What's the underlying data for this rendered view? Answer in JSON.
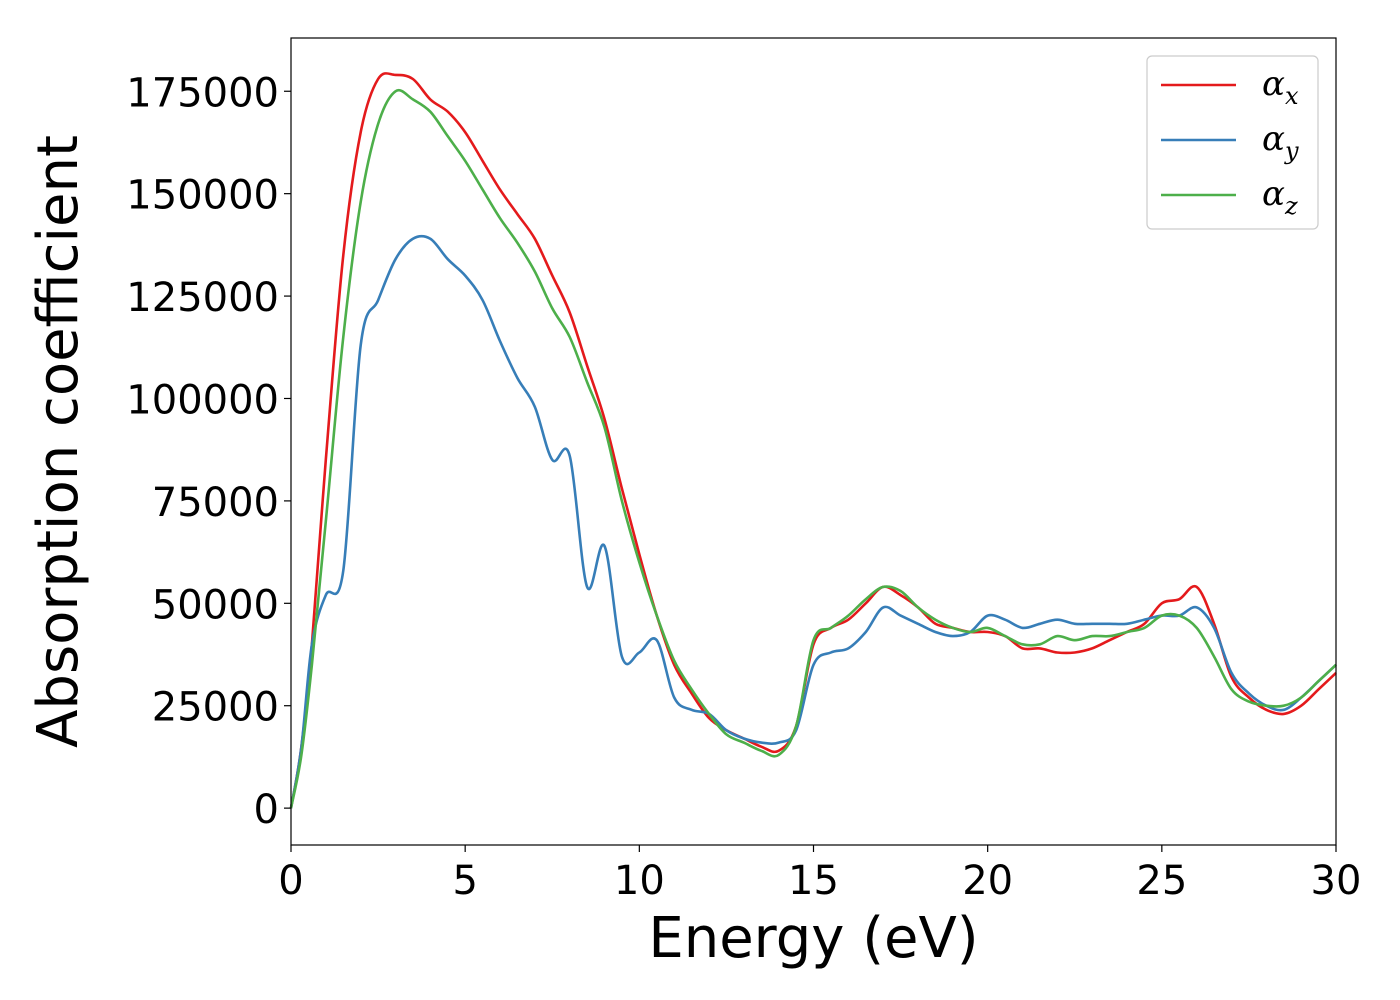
{
  "chart_data": {
    "type": "line",
    "xlabel": "Energy (eV)",
    "ylabel": "Absorption coefficient",
    "xlim": [
      0,
      30
    ],
    "ylim": [
      -9000,
      188000
    ],
    "xticks": [
      0,
      5,
      10,
      15,
      20,
      25,
      30
    ],
    "xtick_labels": [
      "0",
      "5",
      "10",
      "15",
      "20",
      "25",
      "30"
    ],
    "yticks": [
      0,
      25000,
      50000,
      75000,
      100000,
      125000,
      150000,
      175000
    ],
    "ytick_labels": [
      "0",
      "25000",
      "50000",
      "75000",
      "100000",
      "125000",
      "150000",
      "175000"
    ],
    "grid": false,
    "legend_position": "top-right",
    "series": [
      {
        "name": "α_x",
        "legend_symbol": "α",
        "legend_sub": "x",
        "color": "#e41a1c",
        "x": [
          0,
          0.3,
          0.6,
          1.0,
          1.5,
          2.0,
          2.5,
          3.0,
          3.5,
          4.0,
          4.5,
          5.0,
          5.5,
          6.0,
          6.5,
          7.0,
          7.5,
          8.0,
          8.5,
          9.0,
          9.5,
          10.0,
          10.5,
          11.0,
          11.5,
          12.0,
          12.5,
          13.0,
          13.5,
          14.0,
          14.5,
          15.0,
          15.5,
          16.0,
          16.5,
          17.0,
          17.5,
          18.0,
          18.5,
          19.0,
          19.5,
          20.0,
          20.5,
          21.0,
          21.5,
          22.0,
          22.5,
          23.0,
          23.5,
          24.0,
          24.5,
          25.0,
          25.5,
          26.0,
          26.5,
          27.0,
          27.5,
          28.0,
          28.5,
          29.0,
          29.5,
          30.0
        ],
        "y": [
          0,
          15000,
          40000,
          85000,
          135000,
          165000,
          178000,
          179000,
          178000,
          173000,
          170000,
          165000,
          158000,
          151000,
          145000,
          139000,
          130000,
          121000,
          108000,
          95000,
          78000,
          62000,
          47000,
          35000,
          28000,
          22000,
          19000,
          17000,
          15000,
          14000,
          20000,
          40000,
          44000,
          46000,
          50000,
          54000,
          52000,
          49000,
          45000,
          44000,
          43000,
          43000,
          42000,
          39000,
          39000,
          38000,
          38000,
          39000,
          41000,
          43000,
          45000,
          50000,
          51000,
          54000,
          45000,
          32000,
          27000,
          24000,
          23000,
          25000,
          29000,
          33000
        ]
      },
      {
        "name": "α_y",
        "legend_symbol": "α",
        "legend_sub": "y",
        "color": "#377eb8",
        "x": [
          0,
          0.3,
          0.6,
          1.0,
          1.5,
          2.0,
          2.5,
          3.0,
          3.5,
          4.0,
          4.5,
          5.0,
          5.5,
          6.0,
          6.5,
          7.0,
          7.5,
          8.0,
          8.5,
          9.0,
          9.5,
          10.0,
          10.5,
          11.0,
          11.5,
          12.0,
          12.5,
          13.0,
          13.5,
          14.0,
          14.5,
          15.0,
          15.5,
          16.0,
          16.5,
          17.0,
          17.5,
          18.0,
          18.5,
          19.0,
          19.5,
          20.0,
          20.5,
          21.0,
          21.5,
          22.0,
          22.5,
          23.0,
          23.5,
          24.0,
          24.5,
          25.0,
          25.5,
          26.0,
          26.5,
          27.0,
          27.5,
          28.0,
          28.5,
          29.0,
          29.5,
          30.0
        ],
        "y": [
          0,
          15000,
          40000,
          52000,
          58000,
          113000,
          124000,
          134000,
          139000,
          139000,
          134000,
          130000,
          124000,
          114000,
          105000,
          98000,
          85000,
          86000,
          54000,
          64000,
          37000,
          38000,
          41000,
          27000,
          24000,
          23000,
          19000,
          17000,
          16000,
          16000,
          19000,
          35000,
          38000,
          39000,
          43000,
          49000,
          47000,
          45000,
          43000,
          42000,
          43000,
          47000,
          46000,
          44000,
          45000,
          46000,
          45000,
          45000,
          45000,
          45000,
          46000,
          47000,
          47000,
          49000,
          44000,
          33000,
          28000,
          25000,
          24000,
          27000,
          31000,
          35000
        ]
      },
      {
        "name": "α_z",
        "legend_symbol": "α",
        "legend_sub": "z",
        "color": "#4daf4a",
        "x": [
          0,
          0.3,
          0.6,
          1.0,
          1.5,
          2.0,
          2.5,
          3.0,
          3.5,
          4.0,
          4.5,
          5.0,
          5.5,
          6.0,
          6.5,
          7.0,
          7.5,
          8.0,
          8.5,
          9.0,
          9.5,
          10.0,
          10.5,
          11.0,
          11.5,
          12.0,
          12.5,
          13.0,
          13.5,
          14.0,
          14.5,
          15.0,
          15.5,
          16.0,
          16.5,
          17.0,
          17.5,
          18.0,
          18.5,
          19.0,
          19.5,
          20.0,
          20.5,
          21.0,
          21.5,
          22.0,
          22.5,
          23.0,
          23.5,
          24.0,
          24.5,
          25.0,
          25.5,
          26.0,
          26.5,
          27.0,
          27.5,
          28.0,
          28.5,
          29.0,
          29.5,
          30.0
        ],
        "y": [
          0,
          13000,
          35000,
          70000,
          115000,
          148000,
          167000,
          175000,
          173000,
          170000,
          164000,
          158000,
          151000,
          144000,
          138000,
          131000,
          122000,
          115000,
          104000,
          93000,
          75000,
          60000,
          47000,
          36000,
          29000,
          23000,
          18000,
          16000,
          14000,
          13000,
          20000,
          41000,
          44000,
          47000,
          51000,
          54000,
          53000,
          49000,
          46000,
          44000,
          43000,
          44000,
          42000,
          40000,
          40000,
          42000,
          41000,
          42000,
          42000,
          43000,
          44000,
          47000,
          47000,
          44000,
          37000,
          29000,
          26000,
          25000,
          25000,
          27000,
          31000,
          35000
        ]
      }
    ]
  }
}
